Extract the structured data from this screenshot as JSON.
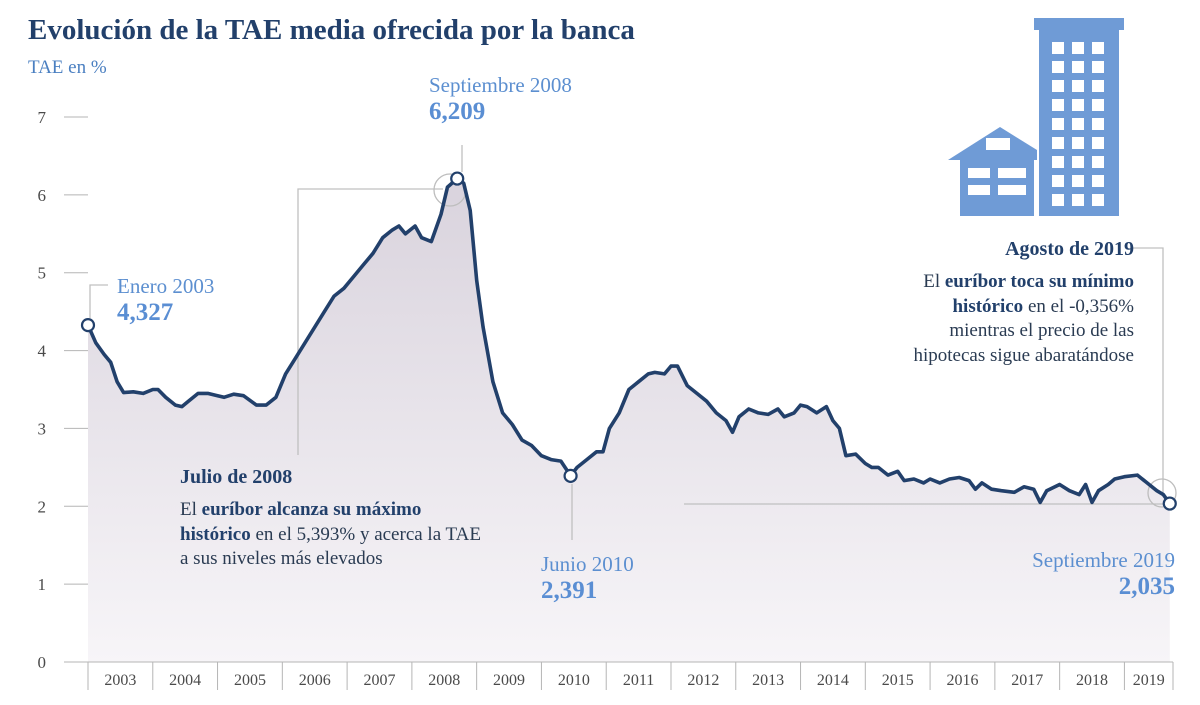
{
  "header": {
    "title": "Evolución de la TAE media ofrecida por la banca",
    "unit": "TAE en %"
  },
  "colors": {
    "line": "#22406b",
    "accent": "#5a8ed3",
    "building": "#6f9bd6",
    "grid": "#c8c8c8"
  },
  "annotations": {
    "start": {
      "label": "Enero 2003",
      "value": "4,327"
    },
    "peak": {
      "label": "Septiembre 2008",
      "value": "6,209"
    },
    "low2010": {
      "label": "Junio 2010",
      "value": "2,391"
    },
    "end": {
      "label": "Septiembre 2019",
      "value": "2,035"
    }
  },
  "notes": {
    "july2008": {
      "heading": "Julio de 2008",
      "pre": "El ",
      "bold": "euríbor alcanza su máximo histórico",
      "post": " en el 5,393% y acerca la TAE a sus niveles más elevados"
    },
    "aug2019": {
      "heading": "Agosto de 2019",
      "pre": "El ",
      "bold": "euríbor toca su mínimo histórico",
      "post": " en el -0,356% mientras el precio de las hipotecas sigue abaratándose"
    }
  },
  "chart_data": {
    "type": "area",
    "title": "Evolución de la TAE media ofrecida por la banca",
    "ylabel": "TAE en %",
    "xlabel": "",
    "ylim": [
      0,
      7
    ],
    "yticks": [
      0,
      1,
      2,
      3,
      4,
      5,
      6,
      7
    ],
    "xlim": [
      2003.0,
      2019.75
    ],
    "years": [
      "2003",
      "2004",
      "2005",
      "2006",
      "2007",
      "2008",
      "2009",
      "2010",
      "2011",
      "2012",
      "2013",
      "2014",
      "2015",
      "2016",
      "2017",
      "2018",
      "2019"
    ],
    "series": [
      {
        "name": "TAE media",
        "points": [
          [
            2003.0,
            4.327
          ],
          [
            2003.12,
            4.1
          ],
          [
            2003.25,
            3.95
          ],
          [
            2003.35,
            3.85
          ],
          [
            2003.45,
            3.6
          ],
          [
            2003.55,
            3.46
          ],
          [
            2003.7,
            3.47
          ],
          [
            2003.85,
            3.45
          ],
          [
            2004.0,
            3.5
          ],
          [
            2004.08,
            3.5
          ],
          [
            2004.2,
            3.4
          ],
          [
            2004.35,
            3.3
          ],
          [
            2004.45,
            3.28
          ],
          [
            2004.55,
            3.35
          ],
          [
            2004.7,
            3.45
          ],
          [
            2004.85,
            3.45
          ],
          [
            2005.0,
            3.42
          ],
          [
            2005.1,
            3.4
          ],
          [
            2005.25,
            3.44
          ],
          [
            2005.4,
            3.42
          ],
          [
            2005.6,
            3.3
          ],
          [
            2005.75,
            3.3
          ],
          [
            2005.9,
            3.4
          ],
          [
            2006.05,
            3.7
          ],
          [
            2006.2,
            3.9
          ],
          [
            2006.35,
            4.1
          ],
          [
            2006.5,
            4.3
          ],
          [
            2006.65,
            4.5
          ],
          [
            2006.8,
            4.7
          ],
          [
            2006.95,
            4.8
          ],
          [
            2007.1,
            4.95
          ],
          [
            2007.25,
            5.1
          ],
          [
            2007.4,
            5.25
          ],
          [
            2007.55,
            5.45
          ],
          [
            2007.7,
            5.55
          ],
          [
            2007.8,
            5.6
          ],
          [
            2007.9,
            5.5
          ],
          [
            2008.05,
            5.6
          ],
          [
            2008.15,
            5.45
          ],
          [
            2008.3,
            5.4
          ],
          [
            2008.45,
            5.75
          ],
          [
            2008.55,
            6.1
          ],
          [
            2008.7,
            6.209
          ],
          [
            2008.8,
            6.15
          ],
          [
            2008.9,
            5.8
          ],
          [
            2009.0,
            4.9
          ],
          [
            2009.1,
            4.3
          ],
          [
            2009.25,
            3.6
          ],
          [
            2009.4,
            3.2
          ],
          [
            2009.55,
            3.05
          ],
          [
            2009.7,
            2.85
          ],
          [
            2009.85,
            2.78
          ],
          [
            2010.0,
            2.65
          ],
          [
            2010.15,
            2.6
          ],
          [
            2010.3,
            2.58
          ],
          [
            2010.45,
            2.391
          ],
          [
            2010.55,
            2.5
          ],
          [
            2010.7,
            2.6
          ],
          [
            2010.85,
            2.7
          ],
          [
            2010.95,
            2.7
          ],
          [
            2011.05,
            3.0
          ],
          [
            2011.2,
            3.2
          ],
          [
            2011.35,
            3.5
          ],
          [
            2011.5,
            3.6
          ],
          [
            2011.65,
            3.7
          ],
          [
            2011.75,
            3.72
          ],
          [
            2011.9,
            3.7
          ],
          [
            2012.0,
            3.8
          ],
          [
            2012.1,
            3.8
          ],
          [
            2012.25,
            3.55
          ],
          [
            2012.4,
            3.45
          ],
          [
            2012.55,
            3.35
          ],
          [
            2012.7,
            3.2
          ],
          [
            2012.85,
            3.1
          ],
          [
            2012.95,
            2.95
          ],
          [
            2013.05,
            3.15
          ],
          [
            2013.2,
            3.25
          ],
          [
            2013.35,
            3.2
          ],
          [
            2013.5,
            3.18
          ],
          [
            2013.65,
            3.25
          ],
          [
            2013.75,
            3.15
          ],
          [
            2013.9,
            3.2
          ],
          [
            2014.0,
            3.3
          ],
          [
            2014.1,
            3.28
          ],
          [
            2014.25,
            3.2
          ],
          [
            2014.4,
            3.28
          ],
          [
            2014.5,
            3.1
          ],
          [
            2014.6,
            3.0
          ],
          [
            2014.7,
            2.65
          ],
          [
            2014.85,
            2.67
          ],
          [
            2015.0,
            2.55
          ],
          [
            2015.1,
            2.5
          ],
          [
            2015.2,
            2.5
          ],
          [
            2015.35,
            2.4
          ],
          [
            2015.5,
            2.45
          ],
          [
            2015.6,
            2.33
          ],
          [
            2015.75,
            2.35
          ],
          [
            2015.9,
            2.3
          ],
          [
            2016.0,
            2.35
          ],
          [
            2016.15,
            2.3
          ],
          [
            2016.3,
            2.35
          ],
          [
            2016.45,
            2.37
          ],
          [
            2016.6,
            2.33
          ],
          [
            2016.7,
            2.22
          ],
          [
            2016.8,
            2.3
          ],
          [
            2016.95,
            2.22
          ],
          [
            2017.1,
            2.2
          ],
          [
            2017.3,
            2.18
          ],
          [
            2017.45,
            2.25
          ],
          [
            2017.6,
            2.22
          ],
          [
            2017.7,
            2.05
          ],
          [
            2017.8,
            2.2
          ],
          [
            2018.0,
            2.28
          ],
          [
            2018.15,
            2.2
          ],
          [
            2018.3,
            2.15
          ],
          [
            2018.4,
            2.28
          ],
          [
            2018.5,
            2.05
          ],
          [
            2018.6,
            2.2
          ],
          [
            2018.75,
            2.28
          ],
          [
            2018.85,
            2.35
          ],
          [
            2019.0,
            2.38
          ],
          [
            2019.2,
            2.4
          ],
          [
            2019.35,
            2.3
          ],
          [
            2019.5,
            2.2
          ],
          [
            2019.6,
            2.15
          ],
          [
            2019.7,
            2.035
          ]
        ]
      }
    ],
    "annotations": [
      {
        "x": 2003.0,
        "y": 4.327,
        "label": "Enero 2003"
      },
      {
        "x": 2008.7,
        "y": 6.209,
        "label": "Septiembre 2008"
      },
      {
        "x": 2010.45,
        "y": 2.391,
        "label": "Junio 2010"
      },
      {
        "x": 2019.7,
        "y": 2.035,
        "label": "Septiembre 2019"
      }
    ],
    "grid": false,
    "legend": "none"
  }
}
